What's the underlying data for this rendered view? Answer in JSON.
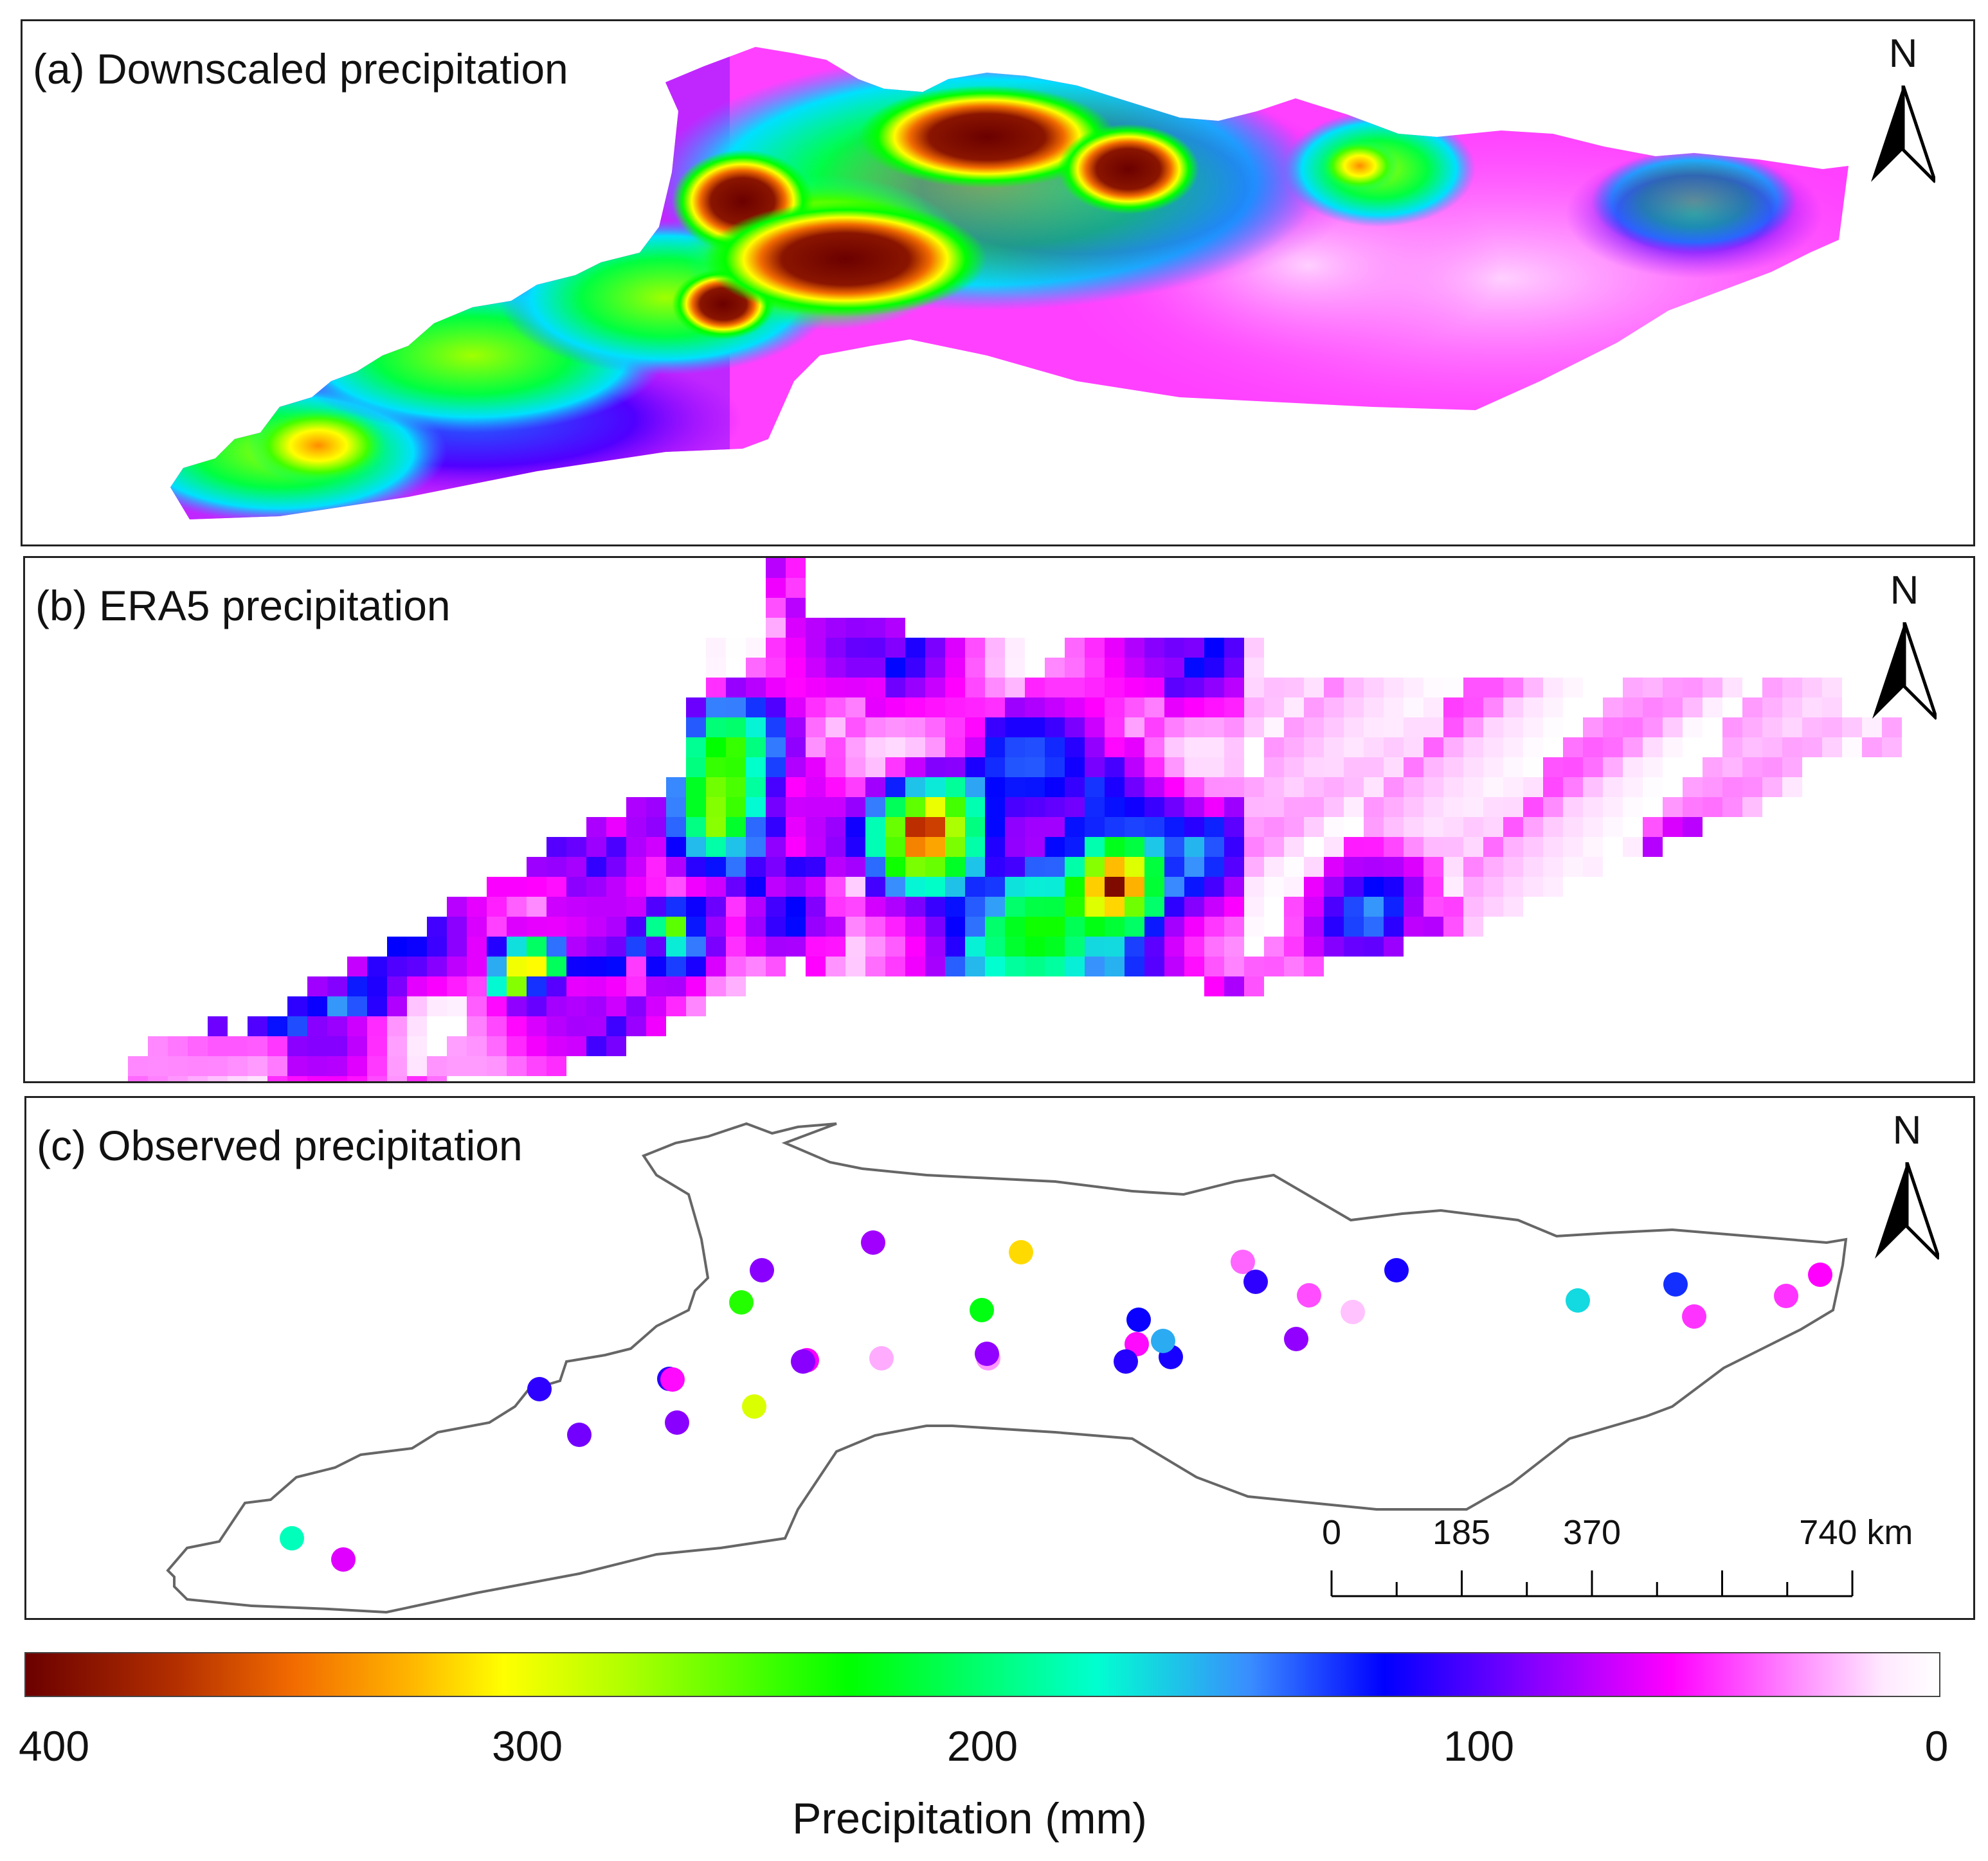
{
  "panels": [
    {
      "id": "a",
      "title": "(a) Downscaled precipitation",
      "north": "N",
      "style": "continuous"
    },
    {
      "id": "b",
      "title": "(b) ERA5 precipitation",
      "north": "N",
      "style": "grid"
    },
    {
      "id": "c",
      "title": "(c) Observed precipitation",
      "north": "N",
      "style": "stations"
    }
  ],
  "scale_bar": {
    "labels": [
      "0",
      "185",
      "370",
      "740 km"
    ],
    "values_km": [
      0,
      185,
      370,
      740
    ],
    "max_km": 740,
    "ticks": 9
  },
  "legend": {
    "title": "Precipitation (mm)",
    "ticks": [
      "400",
      "300",
      "200",
      "100",
      "0"
    ],
    "tick_values": [
      400,
      300,
      200,
      100,
      0
    ],
    "min": 0,
    "max": 400,
    "colors": [
      "#6b0000",
      "#f26b00",
      "#ffff00",
      "#00ff00",
      "#00ffd0",
      "#0000ff",
      "#ff00ff",
      "#ffffff"
    ]
  },
  "stations": [
    {
      "precip_mm": 84
    },
    {
      "precip_mm": 310
    },
    {
      "precip_mm": 90
    },
    {
      "precip_mm": 240
    },
    {
      "precip_mm": 226
    },
    {
      "precip_mm": 40
    },
    {
      "precip_mm": 110
    },
    {
      "precip_mm": 115
    },
    {
      "precip_mm": 45
    },
    {
      "precip_mm": 20
    },
    {
      "precip_mm": 170
    },
    {
      "precip_mm": 130
    },
    {
      "precip_mm": 50
    },
    {
      "precip_mm": 118
    },
    {
      "precip_mm": 50
    },
    {
      "precip_mm": 60
    },
    {
      "precip_mm": 88
    },
    {
      "precip_mm": 62
    },
    {
      "precip_mm": 30
    },
    {
      "precip_mm": 58
    },
    {
      "precip_mm": 115
    },
    {
      "precip_mm": 90
    },
    {
      "precip_mm": 25
    },
    {
      "precip_mm": 112
    },
    {
      "precip_mm": 90
    },
    {
      "precip_mm": 95
    },
    {
      "precip_mm": 290
    },
    {
      "precip_mm": 110
    },
    {
      "precip_mm": 112
    },
    {
      "precip_mm": 88
    },
    {
      "precip_mm": 158
    },
    {
      "precip_mm": 58
    },
    {
      "precip_mm": 185
    },
    {
      "precip_mm": 68
    }
  ]
}
